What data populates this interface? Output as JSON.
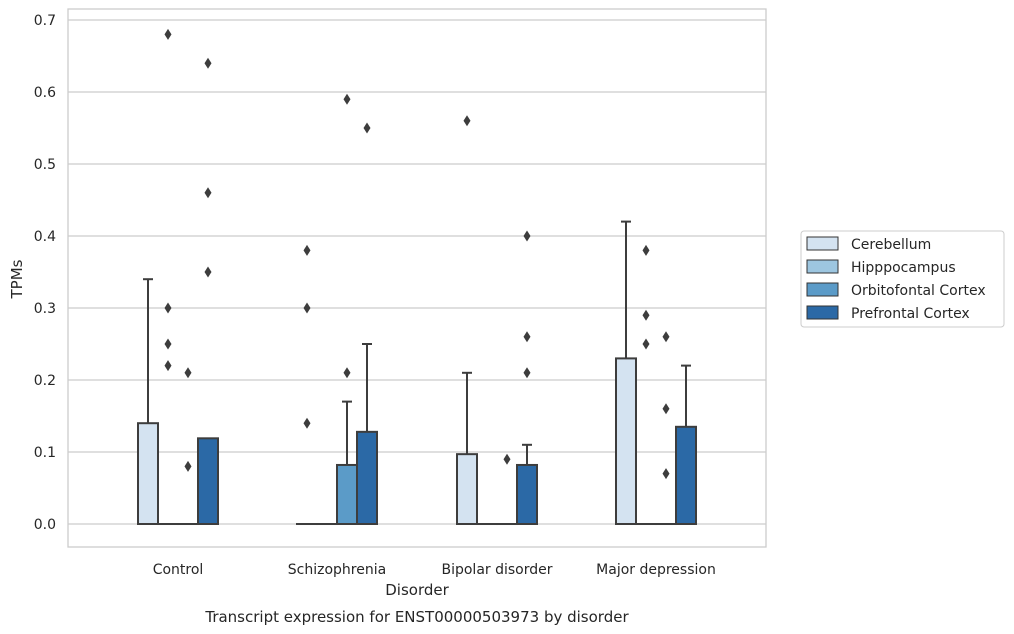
{
  "chart_data": {
    "type": "box",
    "title": "Transcript expression for ENST00000503973 by disorder",
    "xlabel": "Disorder",
    "ylabel": "TPMs",
    "ylim": [
      -0.033,
      0.715
    ],
    "yticks": [
      0.0,
      0.1,
      0.2,
      0.3,
      0.4,
      0.5,
      0.6,
      0.7
    ],
    "ytick_labels": [
      "0.0",
      "0.1",
      "0.2",
      "0.3",
      "0.4",
      "0.5",
      "0.6",
      "0.7"
    ],
    "categories": [
      "Control",
      "Schizophrenia",
      "Bipolar disorder",
      "Major depression"
    ],
    "grid": true,
    "legend_position": "right",
    "series": [
      {
        "name": "Cerebellum",
        "color": "#d4e3f1",
        "boxes": [
          {
            "q1": 0.0,
            "median": 0.0,
            "q3": 0.14,
            "whisker_low": 0.0,
            "whisker_high": 0.34,
            "outliers": []
          },
          {
            "q1": 0.0,
            "median": 0.0,
            "q3": 0.0,
            "whisker_low": 0.0,
            "whisker_high": 0.0,
            "outliers": [
              0.14,
              0.3,
              0.38
            ]
          },
          {
            "q1": 0.0,
            "median": 0.0,
            "q3": 0.097,
            "whisker_low": 0.0,
            "whisker_high": 0.21,
            "outliers": [
              0.56
            ]
          },
          {
            "q1": 0.0,
            "median": 0.0,
            "q3": 0.23,
            "whisker_low": 0.0,
            "whisker_high": 0.42,
            "outliers": []
          }
        ]
      },
      {
        "name": "Hipppocampus",
        "color": "#9dc6e0",
        "boxes": [
          {
            "q1": 0.0,
            "median": 0.0,
            "q3": 0.0,
            "whisker_low": 0.0,
            "whisker_high": 0.0,
            "outliers": [
              0.22,
              0.25,
              0.3,
              0.68
            ]
          },
          {
            "q1": 0.0,
            "median": 0.0,
            "q3": 0.0,
            "whisker_low": 0.0,
            "whisker_high": 0.0,
            "outliers": []
          },
          {
            "q1": 0.0,
            "median": 0.0,
            "q3": 0.0,
            "whisker_low": 0.0,
            "whisker_high": 0.0,
            "outliers": []
          },
          {
            "q1": 0.0,
            "median": 0.0,
            "q3": 0.0,
            "whisker_low": 0.0,
            "whisker_high": 0.0,
            "outliers": [
              0.25,
              0.29,
              0.38
            ]
          }
        ]
      },
      {
        "name": "Orbitofontal Cortex",
        "color": "#5b9bc8",
        "boxes": [
          {
            "q1": 0.0,
            "median": 0.0,
            "q3": 0.0,
            "whisker_low": 0.0,
            "whisker_high": 0.0,
            "outliers": [
              0.08,
              0.21
            ]
          },
          {
            "q1": 0.0,
            "median": 0.0,
            "q3": 0.082,
            "whisker_low": 0.0,
            "whisker_high": 0.17,
            "outliers": [
              0.21,
              0.59
            ]
          },
          {
            "q1": 0.0,
            "median": 0.0,
            "q3": 0.0,
            "whisker_low": 0.0,
            "whisker_high": 0.0,
            "outliers": [
              0.09
            ]
          },
          {
            "q1": 0.0,
            "median": 0.0,
            "q3": 0.0,
            "whisker_low": 0.0,
            "whisker_high": 0.0,
            "outliers": [
              0.07,
              0.16,
              0.26
            ]
          }
        ]
      },
      {
        "name": "Prefrontal Cortex",
        "color": "#2b69a6",
        "boxes": [
          {
            "q1": 0.0,
            "median": 0.0,
            "q3": 0.119,
            "whisker_low": 0.0,
            "whisker_high": 0.119,
            "outliers": [
              0.35,
              0.46,
              0.64
            ]
          },
          {
            "q1": 0.0,
            "median": 0.0,
            "q3": 0.128,
            "whisker_low": 0.0,
            "whisker_high": 0.25,
            "outliers": [
              0.55
            ]
          },
          {
            "q1": 0.0,
            "median": 0.0,
            "q3": 0.082,
            "whisker_low": 0.0,
            "whisker_high": 0.11,
            "outliers": [
              0.21,
              0.26,
              0.4
            ]
          },
          {
            "q1": 0.0,
            "median": 0.0,
            "q3": 0.135,
            "whisker_low": 0.0,
            "whisker_high": 0.22,
            "outliers": []
          }
        ]
      }
    ]
  },
  "colors": {
    "grid": "#cccccc",
    "frame": "#cccccc",
    "box_edge": "#3d3d3d",
    "outlier": "#3d3d3d"
  }
}
